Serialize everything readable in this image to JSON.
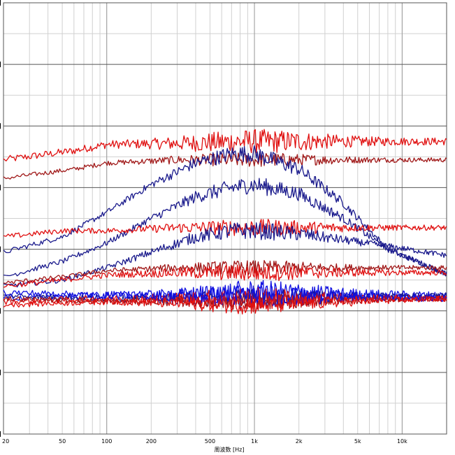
{
  "chart_data": {
    "type": "line",
    "title": "",
    "xlabel": "周波数 [Hz]",
    "ylabel": "",
    "x_scale": "log",
    "xlim": [
      20,
      20000
    ],
    "ylim": [
      0,
      7
    ],
    "x_ticks": [
      {
        "value": 20,
        "label": "20"
      },
      {
        "value": 50,
        "label": "50"
      },
      {
        "value": 100,
        "label": "100"
      },
      {
        "value": 200,
        "label": "200"
      },
      {
        "value": 500,
        "label": "500"
      },
      {
        "value": 1000,
        "label": "1k"
      },
      {
        "value": 2000,
        "label": "2k"
      },
      {
        "value": 5000,
        "label": "5k"
      },
      {
        "value": 10000,
        "label": "10k"
      }
    ],
    "grid": true,
    "colors": {
      "dark_red": "#a01818",
      "red": "#e01010",
      "dark_blue": "#1a1a8c",
      "blue": "#1010e0"
    },
    "series": [
      {
        "color": "#e01010",
        "noise": 0.1,
        "points": [
          [
            20,
            4.45
          ],
          [
            60,
            4.6
          ],
          [
            100,
            4.7
          ],
          [
            300,
            4.72
          ],
          [
            1000,
            4.75
          ],
          [
            3000,
            4.75
          ],
          [
            20000,
            4.75
          ]
        ]
      },
      {
        "color": "#a01818",
        "noise": 0.06,
        "points": [
          [
            20,
            4.15
          ],
          [
            60,
            4.3
          ],
          [
            100,
            4.4
          ],
          [
            300,
            4.45
          ],
          [
            1000,
            4.45
          ],
          [
            3000,
            4.45
          ],
          [
            20000,
            4.45
          ]
        ]
      },
      {
        "color": "#1a1a8c",
        "noise": 0.07,
        "points": [
          [
            20,
            2.95
          ],
          [
            50,
            3.2
          ],
          [
            100,
            3.6
          ],
          [
            200,
            4.05
          ],
          [
            400,
            4.4
          ],
          [
            700,
            4.55
          ],
          [
            1000,
            4.55
          ],
          [
            2000,
            4.3
          ],
          [
            4000,
            3.75
          ],
          [
            8000,
            3.0
          ],
          [
            20000,
            2.6
          ]
        ]
      },
      {
        "color": "#1a1a8c",
        "noise": 0.07,
        "points": [
          [
            20,
            2.55
          ],
          [
            50,
            2.8
          ],
          [
            100,
            3.1
          ],
          [
            200,
            3.5
          ],
          [
            400,
            3.85
          ],
          [
            700,
            4.0
          ],
          [
            1000,
            4.05
          ],
          [
            2000,
            3.9
          ],
          [
            4000,
            3.5
          ],
          [
            8000,
            3.0
          ],
          [
            20000,
            2.6
          ]
        ]
      },
      {
        "color": "#e01010",
        "noise": 0.07,
        "points": [
          [
            20,
            3.2
          ],
          [
            50,
            3.3
          ],
          [
            100,
            3.3
          ],
          [
            300,
            3.35
          ],
          [
            1000,
            3.35
          ],
          [
            3000,
            3.35
          ],
          [
            20000,
            3.35
          ]
        ]
      },
      {
        "color": "#1a1a8c",
        "noise": 0.07,
        "points": [
          [
            20,
            2.4
          ],
          [
            50,
            2.5
          ],
          [
            100,
            2.7
          ],
          [
            200,
            2.95
          ],
          [
            400,
            3.2
          ],
          [
            700,
            3.3
          ],
          [
            1000,
            3.3
          ],
          [
            2000,
            3.25
          ],
          [
            4000,
            3.15
          ],
          [
            8000,
            3.05
          ],
          [
            20000,
            2.9
          ]
        ]
      },
      {
        "color": "#a01818",
        "noise": 0.06,
        "points": [
          [
            20,
            2.45
          ],
          [
            50,
            2.55
          ],
          [
            100,
            2.65
          ],
          [
            300,
            2.7
          ],
          [
            1000,
            2.7
          ],
          [
            20000,
            2.7
          ]
        ]
      },
      {
        "color": "#e01010",
        "noise": 0.07,
        "points": [
          [
            20,
            2.4
          ],
          [
            50,
            2.5
          ],
          [
            100,
            2.58
          ],
          [
            300,
            2.62
          ],
          [
            1000,
            2.62
          ],
          [
            20000,
            2.62
          ]
        ]
      },
      {
        "color": "#1010e0",
        "noise": 0.1,
        "points": [
          [
            20,
            2.2
          ],
          [
            100,
            2.25
          ],
          [
            300,
            2.25
          ],
          [
            1000,
            2.3
          ],
          [
            20000,
            2.25
          ]
        ]
      },
      {
        "color": "#1a1a8c",
        "noise": 0.08,
        "points": [
          [
            20,
            2.25
          ],
          [
            100,
            2.2
          ],
          [
            1000,
            2.2
          ],
          [
            20000,
            2.25
          ]
        ]
      },
      {
        "color": "#e01010",
        "noise": 0.09,
        "points": [
          [
            20,
            2.15
          ],
          [
            100,
            2.2
          ],
          [
            1000,
            2.2
          ],
          [
            20000,
            2.2
          ]
        ]
      },
      {
        "color": "#a01818",
        "noise": 0.07,
        "points": [
          [
            20,
            2.2
          ],
          [
            100,
            2.15
          ],
          [
            1000,
            2.15
          ],
          [
            20000,
            2.2
          ]
        ]
      },
      {
        "color": "#1010e0",
        "noise": 0.09,
        "points": [
          [
            20,
            2.3
          ],
          [
            100,
            2.25
          ],
          [
            1000,
            2.25
          ],
          [
            20000,
            2.2
          ]
        ]
      },
      {
        "color": "#e01010",
        "noise": 0.08,
        "points": [
          [
            20,
            2.1
          ],
          [
            100,
            2.15
          ],
          [
            1000,
            2.1
          ],
          [
            20000,
            2.2
          ]
        ]
      }
    ]
  }
}
